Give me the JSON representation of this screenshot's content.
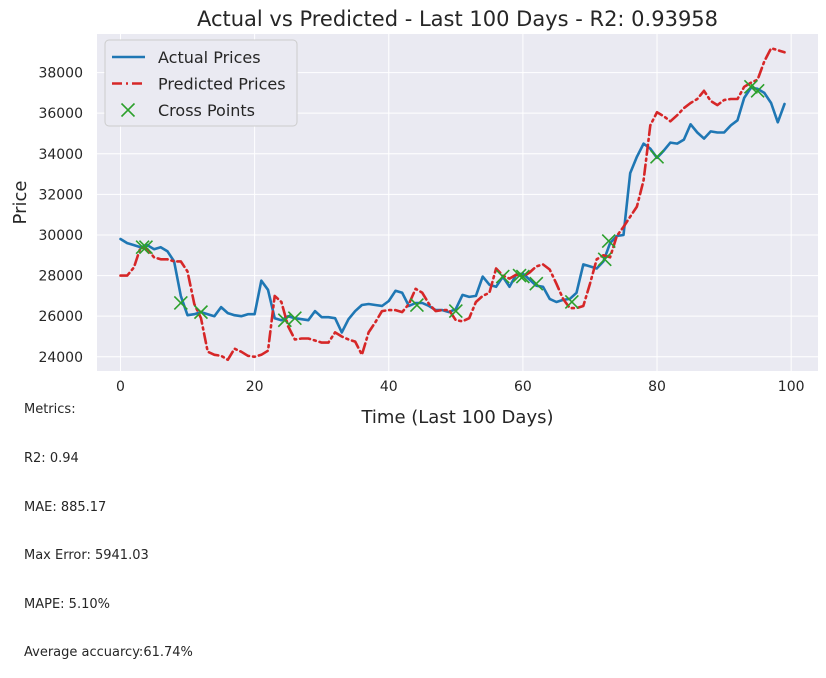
{
  "chart_data": {
    "type": "line",
    "title": "Actual vs Predicted - Last 100 Days - R2: 0.93958",
    "xlabel": "Time (Last 100 Days)",
    "ylabel": "Price",
    "xlim": [
      -3.5,
      104
    ],
    "ylim": [
      23300,
      39900
    ],
    "xticks": [
      0,
      20,
      40,
      60,
      80,
      100
    ],
    "yticks": [
      24000,
      26000,
      28000,
      30000,
      32000,
      34000,
      36000,
      38000
    ],
    "grid": true,
    "legend_position": "top-left",
    "series": [
      {
        "name": "Actual Prices",
        "color": "#1f77b4",
        "style": "solid",
        "x": [
          0,
          1,
          2,
          3,
          4,
          5,
          6,
          7,
          8,
          9,
          10,
          11,
          12,
          13,
          14,
          15,
          16,
          17,
          18,
          19,
          20,
          21,
          22,
          23,
          24,
          25,
          26,
          27,
          28,
          29,
          30,
          31,
          32,
          33,
          34,
          35,
          36,
          37,
          38,
          39,
          40,
          41,
          42,
          43,
          44,
          45,
          46,
          47,
          48,
          49,
          50,
          51,
          52,
          53,
          54,
          55,
          56,
          57,
          58,
          59,
          60,
          61,
          62,
          63,
          64,
          65,
          66,
          67,
          68,
          69,
          70,
          71,
          72,
          73,
          74,
          75,
          76,
          77,
          78,
          79,
          80,
          81,
          82,
          83,
          84,
          85,
          86,
          87,
          88,
          89,
          90,
          91,
          92,
          93,
          94,
          95,
          96,
          97,
          98,
          99
        ],
        "y": [
          29800,
          29600,
          29500,
          29400,
          29500,
          29300,
          29400,
          29200,
          28700,
          27000,
          26050,
          26100,
          26200,
          26100,
          26000,
          26450,
          26150,
          26050,
          26000,
          26100,
          26100,
          27750,
          27300,
          25900,
          25800,
          26000,
          25900,
          25850,
          25800,
          26250,
          25950,
          25950,
          25900,
          25200,
          25850,
          26250,
          26550,
          26600,
          26550,
          26500,
          26750,
          27250,
          27150,
          26500,
          26650,
          26650,
          26500,
          26300,
          26300,
          26200,
          26350,
          27050,
          26950,
          27000,
          27950,
          27550,
          27450,
          27950,
          27450,
          28050,
          28100,
          27800,
          27500,
          27450,
          26850,
          26700,
          26800,
          26850,
          27150,
          28550,
          28450,
          28350,
          28700,
          29600,
          29950,
          30000,
          33050,
          33850,
          34500,
          34250,
          33800,
          34150,
          34550,
          34500,
          34700,
          35450,
          35050,
          34750,
          35100,
          35050,
          35050,
          35400,
          35650,
          36750,
          37250,
          37200,
          37000,
          36500,
          35550,
          36450
        ]
      },
      {
        "name": "Predicted Prices",
        "color": "#d62728",
        "style": "dashdot",
        "x": [
          0,
          1,
          2,
          3,
          4,
          5,
          6,
          7,
          8,
          9,
          10,
          11,
          12,
          13,
          14,
          15,
          16,
          17,
          18,
          19,
          20,
          21,
          22,
          23,
          24,
          25,
          26,
          27,
          28,
          29,
          30,
          31,
          32,
          33,
          34,
          35,
          36,
          37,
          38,
          39,
          40,
          41,
          42,
          43,
          44,
          45,
          46,
          47,
          48,
          49,
          50,
          51,
          52,
          53,
          54,
          55,
          56,
          57,
          58,
          59,
          60,
          61,
          62,
          63,
          64,
          65,
          66,
          67,
          68,
          69,
          70,
          71,
          72,
          73,
          74,
          75,
          76,
          77,
          78,
          79,
          80,
          81,
          82,
          83,
          84,
          85,
          86,
          87,
          88,
          89,
          90,
          91,
          92,
          93,
          94,
          95,
          96,
          97,
          98,
          99
        ],
        "y": [
          28000,
          28000,
          28400,
          29400,
          29300,
          28900,
          28800,
          28800,
          28700,
          28700,
          28200,
          26600,
          25900,
          24250,
          24100,
          24050,
          23850,
          24400,
          24250,
          24050,
          24000,
          24100,
          24300,
          27000,
          26700,
          25500,
          24850,
          24900,
          24900,
          24800,
          24700,
          24700,
          25200,
          25000,
          24850,
          24750,
          24100,
          25200,
          25700,
          26250,
          26300,
          26300,
          26200,
          26600,
          27350,
          27150,
          26600,
          26250,
          26300,
          26300,
          25800,
          25750,
          25900,
          26700,
          27000,
          27150,
          28350,
          28000,
          27850,
          28050,
          27950,
          28150,
          28450,
          28550,
          28300,
          27600,
          26850,
          26400,
          26400,
          26500,
          27600,
          28800,
          29000,
          28900,
          29950,
          30400,
          30900,
          31400,
          32700,
          35400,
          36050,
          35850,
          35600,
          35900,
          36250,
          36500,
          36700,
          37100,
          36600,
          36400,
          36650,
          36700,
          36700,
          37300,
          37500,
          37650,
          38550,
          39200,
          39100,
          39000
        ]
      },
      {
        "name": "Cross Points",
        "color": "#2ca02c",
        "style": "marker-x",
        "x": [
          3.3,
          3.8,
          9.0,
          12.0,
          24.5,
          26.0,
          44.2,
          50.0,
          57.0,
          59.5,
          60.0,
          62.0,
          67.3,
          72.2,
          72.8,
          80.0,
          94.0,
          95.0
        ],
        "y": [
          29400,
          29400,
          26650,
          26200,
          25800,
          25900,
          26550,
          26250,
          27950,
          28000,
          27950,
          27600,
          26700,
          28800,
          29700,
          33850,
          37300,
          37100
        ]
      }
    ]
  },
  "metrics": {
    "header": "Metrics:",
    "r2": "R2: 0.94",
    "mae": "MAE: 885.17",
    "max_error": "Max Error: 5941.03",
    "mape": "MAPE: 5.10%",
    "avg_accuracy": "Average accuarcy:61.74%"
  }
}
